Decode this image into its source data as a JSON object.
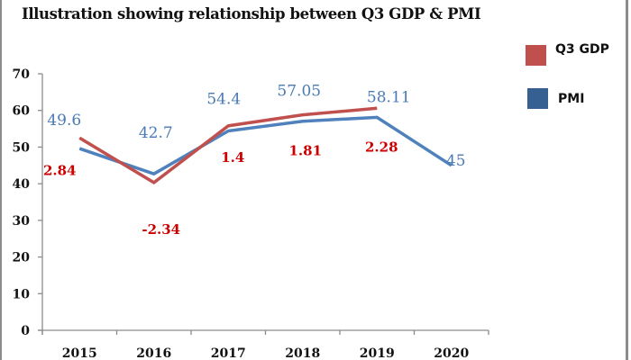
{
  "chart_data": {
    "type": "line",
    "title": "Illustration showing relationship between Q3 GDP & PMI",
    "xlabel": "",
    "ylabel": "",
    "categories": [
      "2015",
      "2016",
      "2017",
      "2018",
      "2019",
      "2020"
    ],
    "ylim": [
      0,
      70
    ],
    "yticks": [
      0,
      10,
      20,
      30,
      40,
      50,
      60,
      70
    ],
    "ytick_labels": [
      "0",
      "10",
      "20",
      "30",
      "40",
      "50",
      "60",
      "70"
    ],
    "grid": false,
    "legend_position": "top-right",
    "series": [
      {
        "name": "Q3 GDP",
        "color": "#c0504d",
        "label_color": "#cc0000",
        "values": [
          2.84,
          -2.34,
          1.4,
          1.81,
          2.28,
          null
        ],
        "labels": [
          "2.84",
          "-2.34",
          "1.4",
          "1.81",
          "2.28",
          ""
        ],
        "plot_values": [
          52.5,
          40.3,
          55.8,
          58.8,
          60.6,
          null
        ]
      },
      {
        "name": "PMI",
        "color": "#4f81bd",
        "label_color": "#4a7ab5",
        "values": [
          49.6,
          42.7,
          54.4,
          57.05,
          58.11,
          45
        ],
        "labels": [
          "49.6",
          "42.7",
          "54.4",
          "57.05",
          "58.11",
          "45"
        ],
        "plot_values": [
          49.6,
          42.7,
          54.4,
          57.05,
          58.11,
          45
        ]
      }
    ]
  },
  "legend": [
    {
      "label": "Q3 GDP",
      "color": "#c0504d"
    },
    {
      "label": "PMI",
      "color": "#376092"
    }
  ]
}
